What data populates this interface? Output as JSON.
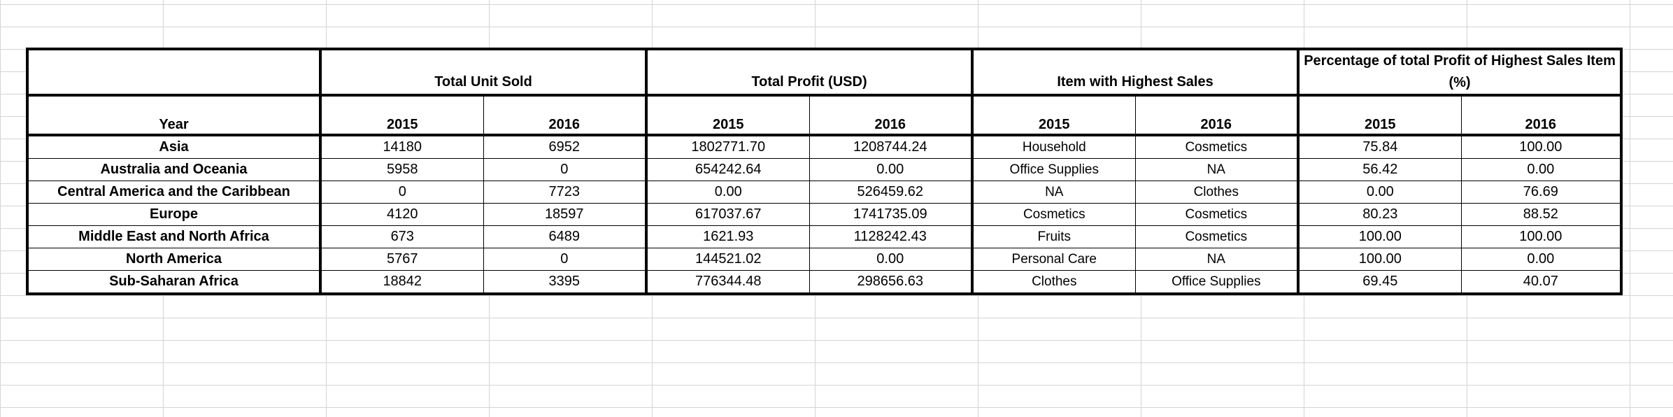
{
  "table": {
    "headers": {
      "year": "Year",
      "total_unit_sold": "Total Unit Sold",
      "total_profit": "Total Profit (USD)",
      "item_highest_sales": "Item with Highest Sales",
      "percentage_profit": "Percentage of total Profit of Highest Sales Item (%)",
      "y2015": "2015",
      "y2016": "2016"
    },
    "rows": [
      {
        "region": "Asia",
        "units_2015": "14180",
        "units_2016": "6952",
        "profit_2015": "1802771.70",
        "profit_2016": "1208744.24",
        "item_2015": "Household",
        "item_2016": "Cosmetics",
        "pct_2015": "75.84",
        "pct_2016": "100.00"
      },
      {
        "region": "Australia and Oceania",
        "units_2015": "5958",
        "units_2016": "0",
        "profit_2015": "654242.64",
        "profit_2016": "0.00",
        "item_2015": "Office Supplies",
        "item_2016": "NA",
        "pct_2015": "56.42",
        "pct_2016": "0.00"
      },
      {
        "region": "Central America and the Caribbean",
        "units_2015": "0",
        "units_2016": "7723",
        "profit_2015": "0.00",
        "profit_2016": "526459.62",
        "item_2015": "NA",
        "item_2016": "Clothes",
        "pct_2015": "0.00",
        "pct_2016": "76.69"
      },
      {
        "region": "Europe",
        "units_2015": "4120",
        "units_2016": "18597",
        "profit_2015": "617037.67",
        "profit_2016": "1741735.09",
        "item_2015": "Cosmetics",
        "item_2016": "Cosmetics",
        "pct_2015": "80.23",
        "pct_2016": "88.52"
      },
      {
        "region": "Middle East and North Africa",
        "units_2015": "673",
        "units_2016": "6489",
        "profit_2015": "1621.93",
        "profit_2016": "1128242.43",
        "item_2015": "Fruits",
        "item_2016": "Cosmetics",
        "pct_2015": "100.00",
        "pct_2016": "100.00"
      },
      {
        "region": "North America",
        "units_2015": "5767",
        "units_2016": "0",
        "profit_2015": "144521.02",
        "profit_2016": "0.00",
        "item_2015": "Personal Care",
        "item_2016": "NA",
        "pct_2015": "100.00",
        "pct_2016": "0.00"
      },
      {
        "region": "Sub-Saharan Africa",
        "units_2015": "18842",
        "units_2016": "3395",
        "profit_2015": "776344.48",
        "profit_2016": "298656.63",
        "item_2015": "Clothes",
        "item_2016": "Office Supplies",
        "pct_2015": "69.45",
        "pct_2016": "40.07"
      }
    ]
  }
}
